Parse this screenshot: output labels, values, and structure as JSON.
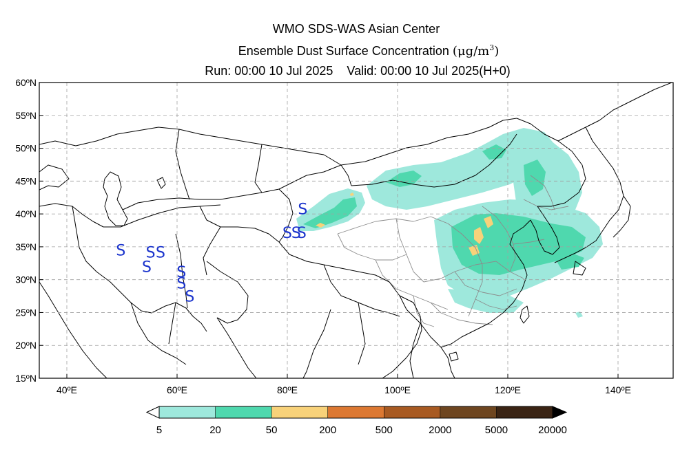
{
  "title": {
    "line1": "WMO SDS-WAS Asian Center",
    "line2": "Ensemble Dust Surface Concentration",
    "unit": "(μg/m",
    "unit_sup": "3",
    "unit_end": ")",
    "run": "Run: 00:00 10 Jul 2025",
    "valid": "Valid: 00:00 10 Jul 2025(H+0)"
  },
  "map": {
    "lon_range": [
      35,
      150
    ],
    "lat_range": [
      15,
      60
    ],
    "x_ticks": [
      {
        "lon": 40,
        "label": "40ºE"
      },
      {
        "lon": 60,
        "label": "60ºE"
      },
      {
        "lon": 80,
        "label": "80ºE"
      },
      {
        "lon": 100,
        "label": "100ºE"
      },
      {
        "lon": 120,
        "label": "120ºE"
      },
      {
        "lon": 140,
        "label": "140ºE"
      }
    ],
    "y_ticks": [
      {
        "lat": 60,
        "label": "60ºN"
      },
      {
        "lat": 55,
        "label": "55ºN"
      },
      {
        "lat": 50,
        "label": "50ºN"
      },
      {
        "lat": 45,
        "label": "45ºN"
      },
      {
        "lat": 40,
        "label": "40ºN"
      },
      {
        "lat": 35,
        "label": "35ºN"
      },
      {
        "lat": 30,
        "label": "30ºN"
      },
      {
        "lat": 25,
        "label": "25ºN"
      },
      {
        "lat": 20,
        "label": "20ºN"
      },
      {
        "lat": 15,
        "label": "15ºN"
      }
    ],
    "grid": true,
    "station_marker": "S",
    "station_color": "#1a33cc",
    "stations": [
      {
        "lon": 49.8,
        "lat": 34.5
      },
      {
        "lon": 54.5,
        "lat": 32.0
      },
      {
        "lon": 55.2,
        "lat": 34.2
      },
      {
        "lon": 57.0,
        "lat": 34.2
      },
      {
        "lon": 60.8,
        "lat": 31.2
      },
      {
        "lon": 60.8,
        "lat": 29.5
      },
      {
        "lon": 62.3,
        "lat": 27.5
      },
      {
        "lon": 82.8,
        "lat": 40.8
      },
      {
        "lon": 80.0,
        "lat": 37.2
      },
      {
        "lon": 81.6,
        "lat": 37.2
      },
      {
        "lon": 82.6,
        "lat": 37.2
      }
    ]
  },
  "colorbar": {
    "labels": [
      "5",
      "20",
      "50",
      "200",
      "500",
      "2000",
      "5000",
      "20000"
    ],
    "colors": [
      "#9ee8dc",
      "#4fd8ae",
      "#f8d27a",
      "#dc7832",
      "#a85a22",
      "#6e4620",
      "#3a2414"
    ],
    "under_color": "#ffffff",
    "over_color": "#000000"
  }
}
